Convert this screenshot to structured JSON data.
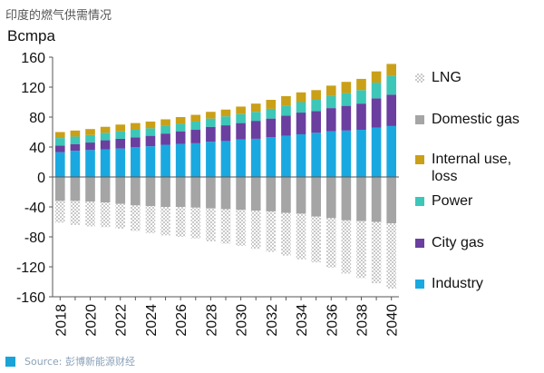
{
  "title": "印度的燃气供需情况",
  "source": "Source: 彭博新能源财经",
  "colors": {
    "industry": "#19a9e0",
    "city_gas": "#6a3fa0",
    "power": "#3cc7b8",
    "internal_use": "#c9a018",
    "domestic": "#a5a5a5",
    "lng_pattern": "#c9c9c9"
  },
  "chart_data": {
    "type": "bar",
    "stacked": true,
    "ylabel": "Bcmpa",
    "ylim": [
      -160,
      160
    ],
    "yticks": [
      160,
      120,
      80,
      40,
      0,
      -40,
      -80,
      -120,
      -160
    ],
    "grid": false,
    "legend_position": "right",
    "categories": [
      "2018",
      "2019",
      "2020",
      "2021",
      "2022",
      "2023",
      "2024",
      "2025",
      "2026",
      "2027",
      "2028",
      "2029",
      "2030",
      "2031",
      "2032",
      "2033",
      "2034",
      "2035",
      "2036",
      "2037",
      "2038",
      "2039",
      "2040"
    ],
    "xtick_labels": [
      "2018",
      "2020",
      "2022",
      "2024",
      "2026",
      "2028",
      "2030",
      "2032",
      "2034",
      "2036",
      "2038",
      "2040"
    ],
    "series": [
      {
        "name": "Industry",
        "key": "industry",
        "values": [
          33,
          35,
          36,
          37,
          38,
          40,
          41,
          43,
          44,
          45,
          47,
          48,
          50,
          51,
          53,
          55,
          57,
          59,
          61,
          62,
          63,
          66,
          68
        ]
      },
      {
        "name": "City gas",
        "key": "city_gas",
        "values": [
          9,
          9,
          10,
          12,
          13,
          13,
          14,
          15,
          17,
          18,
          20,
          21,
          22,
          24,
          25,
          27,
          29,
          29,
          31,
          33,
          35,
          39,
          42
        ]
      },
      {
        "name": "Power",
        "key": "power",
        "values": [
          10,
          10,
          10,
          10,
          10,
          10,
          10,
          10,
          10,
          11,
          11,
          12,
          12,
          12,
          13,
          13,
          14,
          15,
          16,
          17,
          18,
          21,
          25
        ]
      },
      {
        "name": "Internal use, loss",
        "key": "internal_use",
        "values": [
          8,
          8,
          8,
          8,
          9,
          9,
          9,
          9,
          9,
          9,
          9,
          9,
          10,
          11,
          12,
          13,
          13,
          13,
          14,
          15,
          15,
          15,
          16
        ]
      },
      {
        "name": "Domestic gas",
        "key": "domestic",
        "values": [
          -32,
          -32,
          -33,
          -34,
          -36,
          -38,
          -39,
          -40,
          -40,
          -41,
          -42,
          -43,
          -44,
          -45,
          -46,
          -48,
          -49,
          -53,
          -55,
          -58,
          -59,
          -60,
          -62
        ]
      },
      {
        "name": "LNG",
        "key": "lng",
        "values": [
          -29,
          -32,
          -33,
          -33,
          -33,
          -34,
          -36,
          -38,
          -40,
          -41,
          -44,
          -46,
          -48,
          -51,
          -54,
          -57,
          -61,
          -61,
          -66,
          -71,
          -76,
          -82,
          -87
        ]
      }
    ],
    "legend_order": [
      "LNG",
      "Domestic gas",
      "Internal use, loss",
      "Power",
      "City gas",
      "Industry"
    ]
  }
}
